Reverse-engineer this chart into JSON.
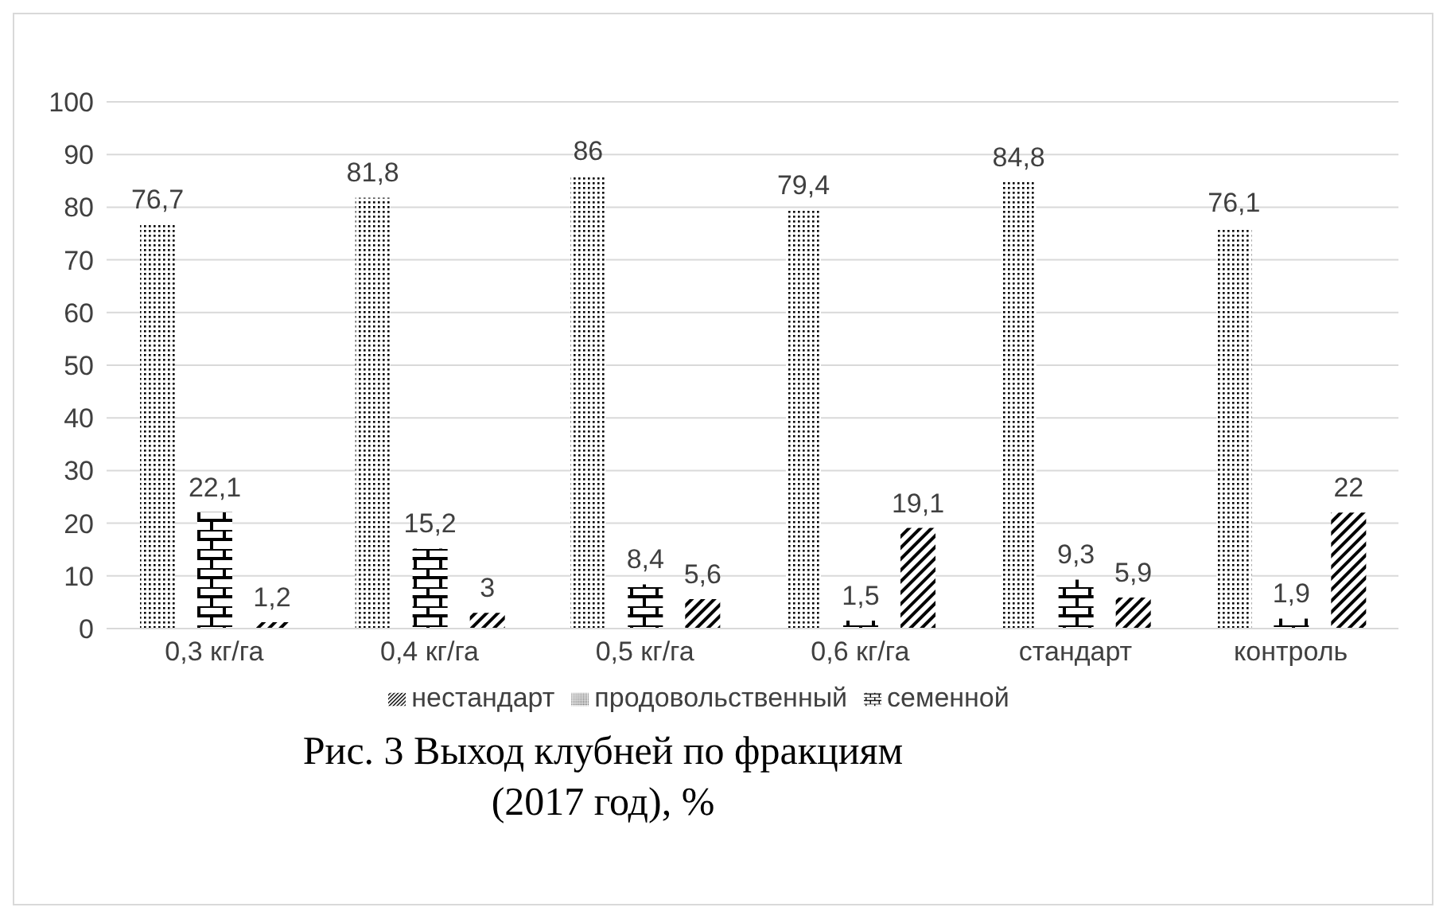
{
  "chart_data": {
    "type": "bar",
    "title": "Рис. 3 Выход клубней по фракциям\n(2017 год), %",
    "categories": [
      "0,3 кг/га",
      "0,4 кг/га",
      "0,5 кг/га",
      "0,6 кг/га",
      "стандарт",
      "контроль"
    ],
    "series": [
      {
        "name": "продовольственный",
        "color": "#000000",
        "values": [
          76.7,
          81.8,
          86,
          79.4,
          84.8,
          76.1
        ],
        "value_labels": [
          "76,7",
          "81,8",
          "86",
          "79,4",
          "84,8",
          "76,1"
        ]
      },
      {
        "name": "семенной",
        "color": "#000000",
        "values": [
          22.1,
          15.2,
          8.4,
          1.5,
          9.3,
          1.9
        ],
        "value_labels": [
          "22,1",
          "15,2",
          "8,4",
          "1,5",
          "9,3",
          "1,9"
        ]
      },
      {
        "name": "нестандарт",
        "color": "#000000",
        "values": [
          1.2,
          3,
          5.6,
          19.1,
          5.9,
          22
        ],
        "value_labels": [
          "1,2",
          "3",
          "5,6",
          "19,1",
          "5,9",
          "22"
        ]
      }
    ],
    "ylim": [
      0,
      100
    ],
    "yticks": [
      0,
      10,
      20,
      30,
      40,
      50,
      60,
      70,
      80,
      90,
      100
    ],
    "grid": "y",
    "legend": "bottom"
  }
}
